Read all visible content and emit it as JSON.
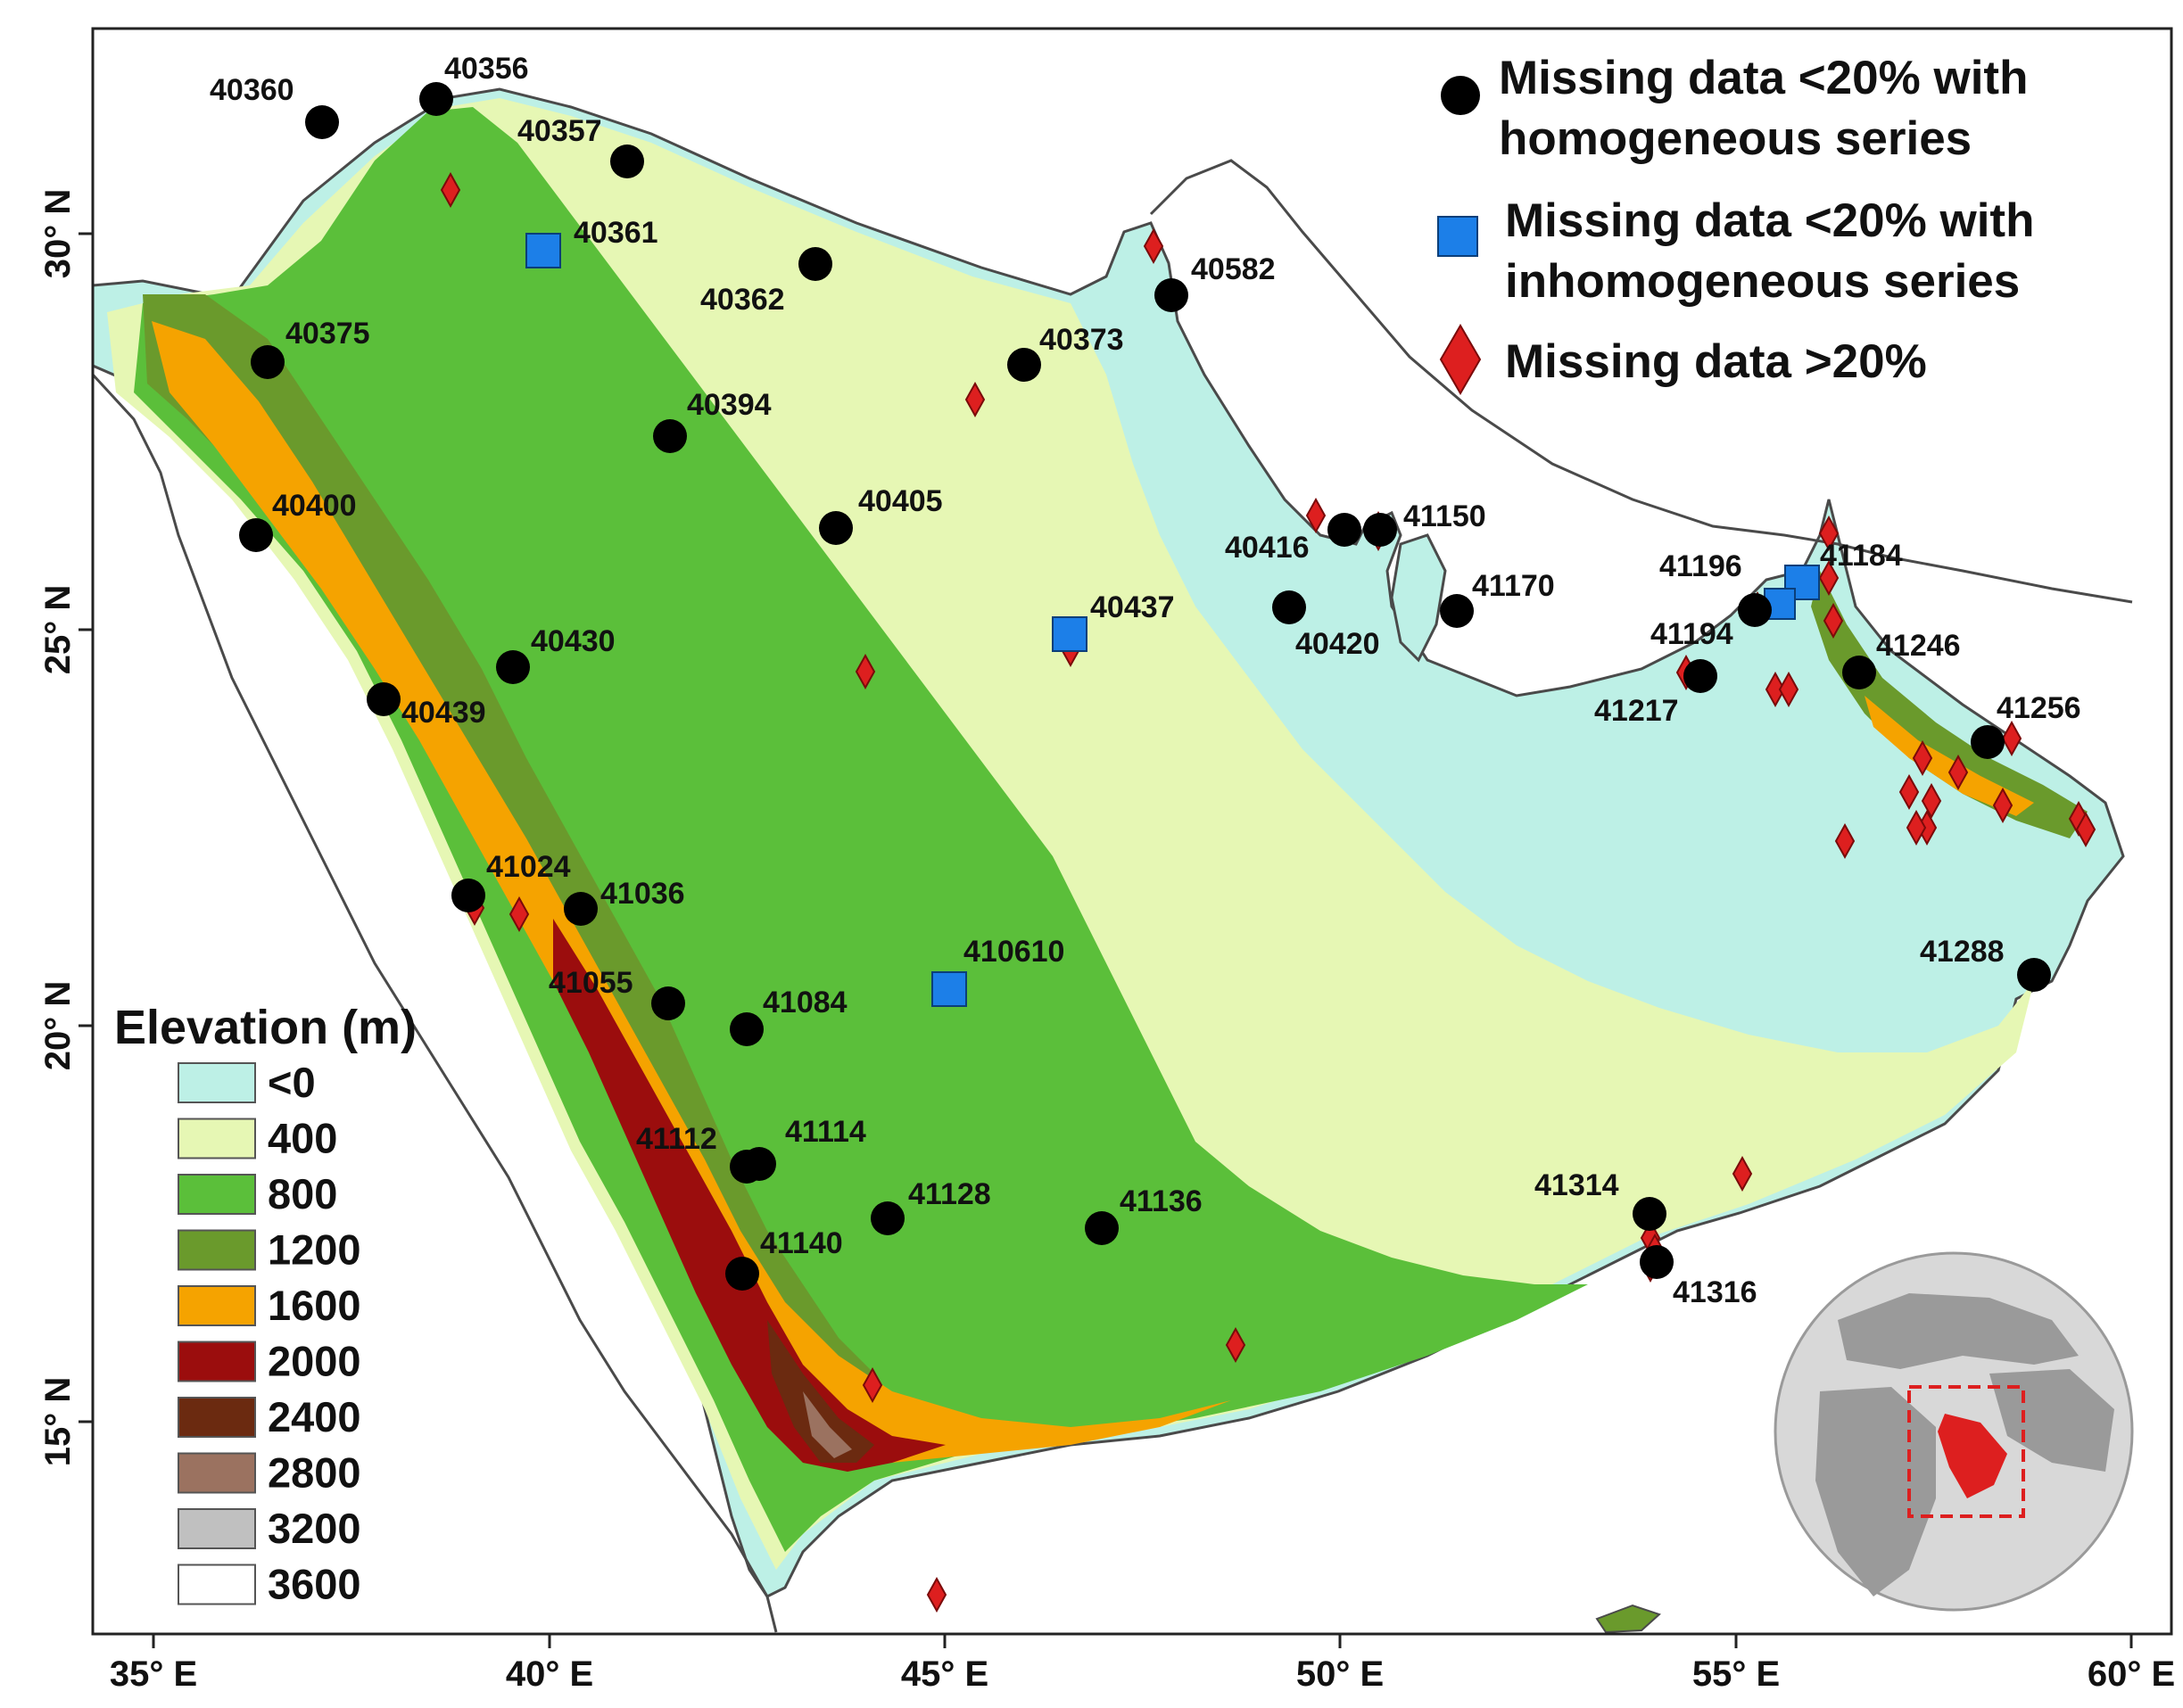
{
  "map": {
    "lon_ticks": [
      "35° E",
      "40° E",
      "45° E",
      "50° E",
      "55° E",
      "60° E"
    ],
    "lat_ticks": [
      "15° N",
      "20° N",
      "25° N",
      "30° N"
    ],
    "legend": {
      "homogeneous": [
        "Missing data <20% with",
        "homogeneous series"
      ],
      "inhomogeneous": [
        "Missing data <20% with",
        "inhomogeneous series"
      ],
      "over20": "Missing data >20%"
    },
    "elevation": {
      "title": "Elevation (m)",
      "classes": [
        {
          "label": "<0",
          "color": "#bdf0e6"
        },
        {
          "label": "400",
          "color": "#e6f7b4"
        },
        {
          "label": "800",
          "color": "#5bbf3a"
        },
        {
          "label": "1200",
          "color": "#6a9a2c"
        },
        {
          "label": "1600",
          "color": "#f5a300"
        },
        {
          "label": "2000",
          "color": "#9b0d0d"
        },
        {
          "label": "2400",
          "color": "#6b2a10"
        },
        {
          "label": "2800",
          "color": "#9b7260"
        },
        {
          "label": "3200",
          "color": "#c0c0c0"
        },
        {
          "label": "3600",
          "color": "#ffffff"
        }
      ]
    },
    "colors": {
      "sea": "#ffffff",
      "coast": "#4a4a4a",
      "homogeneous": "#000000",
      "inhomogeneous": "#1c7fe8",
      "over20": "#dd1f1f"
    },
    "stations_homogeneous": [
      {
        "id": "40360"
      },
      {
        "id": "40356"
      },
      {
        "id": "40357"
      },
      {
        "id": "40362"
      },
      {
        "id": "40375"
      },
      {
        "id": "40394"
      },
      {
        "id": "40400"
      },
      {
        "id": "40405"
      },
      {
        "id": "40430"
      },
      {
        "id": "40439"
      },
      {
        "id": "40373"
      },
      {
        "id": "40582"
      },
      {
        "id": "40416"
      },
      {
        "id": "41150"
      },
      {
        "id": "40420"
      },
      {
        "id": "41170"
      },
      {
        "id": "41196"
      },
      {
        "id": "41194"
      },
      {
        "id": "41246"
      },
      {
        "id": "41256"
      },
      {
        "id": "41288"
      },
      {
        "id": "41024"
      },
      {
        "id": "41036"
      },
      {
        "id": "41055"
      },
      {
        "id": "41084"
      },
      {
        "id": "41112"
      },
      {
        "id": "41114"
      },
      {
        "id": "41128"
      },
      {
        "id": "41136"
      },
      {
        "id": "41140"
      },
      {
        "id": "41314"
      },
      {
        "id": "41316"
      }
    ],
    "stations_inhomogeneous": [
      {
        "id": "40361"
      },
      {
        "id": "40437"
      },
      {
        "id": "410610"
      },
      {
        "id": "41184"
      }
    ],
    "stations_over20_labels": [
      {
        "id": "41217"
      }
    ]
  }
}
